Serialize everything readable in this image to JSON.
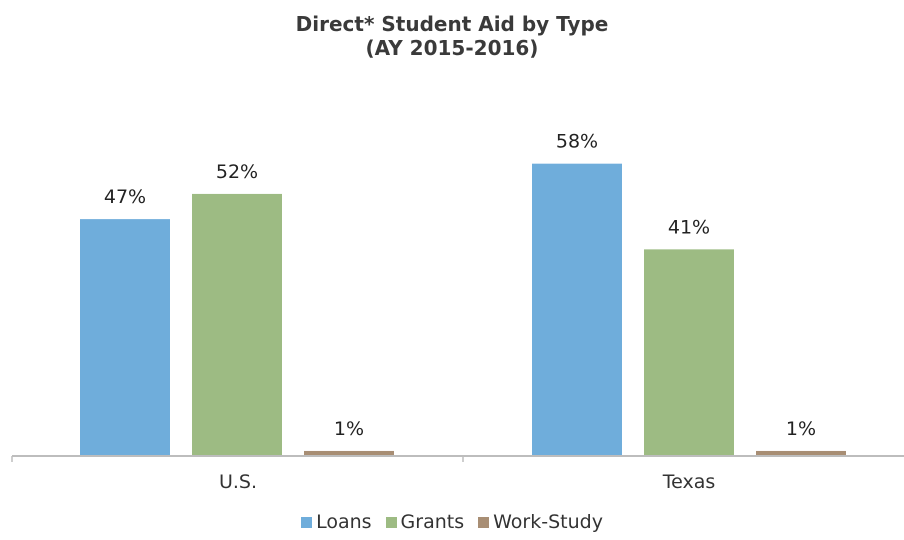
{
  "chart_data": {
    "type": "bar",
    "title_line1": "Direct* Student Aid by Type",
    "title_line2": "(AY 2015-2016)",
    "categories": [
      "U.S.",
      "Texas"
    ],
    "series": [
      {
        "name": "Loans",
        "values": [
          47,
          58
        ],
        "labels": [
          "47%",
          "58%"
        ],
        "color": "#6FADDB"
      },
      {
        "name": "Grants",
        "values": [
          52,
          41
        ],
        "labels": [
          "52%",
          "41%"
        ],
        "color": "#9DBB83"
      },
      {
        "name": "Work-Study",
        "values": [
          1,
          1
        ],
        "labels": [
          "1%",
          "1%"
        ],
        "color": "#A88E74"
      }
    ],
    "xlabel": "",
    "ylabel": "",
    "ylim": [
      0,
      60
    ],
    "y_axis_visible": false,
    "grid": false,
    "legend_position": "bottom"
  }
}
